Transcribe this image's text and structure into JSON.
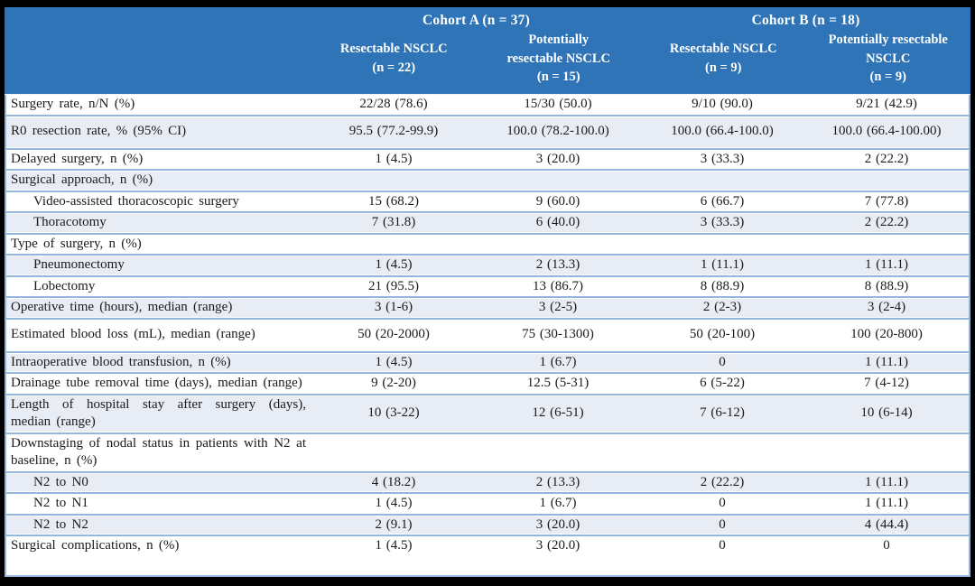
{
  "colors": {
    "header_bg": "#2F74B6",
    "header_text": "#FFFFFF",
    "stripe_row": "#E7ECF5",
    "rule_blue": "#94B6DB",
    "frame_black": "#000000",
    "body_text": "#1B1B1B"
  },
  "table": {
    "groups": [
      {
        "label": "Cohort A (n = 37)"
      },
      {
        "label": "Cohort B (n = 18)"
      }
    ],
    "columns": [
      {
        "label": "Resectable NSCLC\n(n = 22)"
      },
      {
        "label": "Potentially\nresectable NSCLC\n(n = 15)"
      },
      {
        "label": "Resectable NSCLC\n(n = 9)"
      },
      {
        "label": "Potentially resectable\nNSCLC\n(n = 9)"
      }
    ],
    "rows": [
      {
        "label": "Surgery rate, n/N (%)",
        "values": [
          "22/28 (78.6)",
          "15/30 (50.0)",
          "9/10 (90.0)",
          "9/21 (42.9)"
        ]
      },
      {
        "label": "R0 resection rate, % (95% CI)",
        "tall": true,
        "values": [
          "95.5 (77.2-99.9)",
          "100.0 (78.2-100.0)",
          "100.0 (66.4-100.0)",
          "100.0 (66.4-100.00)"
        ]
      },
      {
        "label": "Delayed surgery, n (%)",
        "values": [
          "1 (4.5)",
          "3 (20.0)",
          "3 (33.3)",
          "2 (22.2)"
        ]
      },
      {
        "label": "Surgical approach, n (%)",
        "section": true,
        "values": [
          "",
          "",
          "",
          ""
        ]
      },
      {
        "label": "Video-assisted thoracoscopic surgery",
        "indent": true,
        "values": [
          "15 (68.2)",
          "9 (60.0)",
          "6 (66.7)",
          "7 (77.8)"
        ]
      },
      {
        "label": "Thoracotomy",
        "indent": true,
        "values": [
          "7 (31.8)",
          "6 (40.0)",
          "3 (33.3)",
          "2 (22.2)"
        ]
      },
      {
        "label": "Type of surgery, n (%)",
        "section": true,
        "values": [
          "",
          "",
          "",
          ""
        ]
      },
      {
        "label": "Pneumonectomy",
        "indent": true,
        "values": [
          "1 (4.5)",
          "2 (13.3)",
          "1 (11.1)",
          "1 (11.1)"
        ]
      },
      {
        "label": "Lobectomy",
        "indent": true,
        "values": [
          "21 (95.5)",
          "13 (86.7)",
          "8 (88.9)",
          "8 (88.9)"
        ]
      },
      {
        "label": "Operative time (hours), median (range)",
        "values": [
          "3 (1-6)",
          "3 (2-5)",
          "2 (2-3)",
          "3 (2-4)"
        ]
      },
      {
        "label": "Estimated blood loss (mL), median (range)",
        "tall": true,
        "values": [
          "50 (20-2000)",
          "75 (30-1300)",
          "50 (20-100)",
          "100 (20-800)"
        ]
      },
      {
        "label": "Intraoperative blood transfusion, n (%)",
        "values": [
          "1 (4.5)",
          "1 (6.7)",
          "0",
          "1 (11.1)"
        ]
      },
      {
        "label": "Drainage tube removal time (days), median (range)",
        "values": [
          "9 (2-20)",
          "12.5 (5-31)",
          "6 (5-22)",
          "7 (4-12)"
        ]
      },
      {
        "label": "Length of hospital stay after surgery (days), median (range)",
        "values": [
          "10 (3-22)",
          "12 (6-51)",
          "7 (6-12)",
          "10 (6-14)"
        ]
      },
      {
        "label": "Downstaging of nodal status in patients with N2 at baseline, n (%)",
        "section": true,
        "values": [
          "",
          "",
          "",
          ""
        ]
      },
      {
        "label": "N2 to N0",
        "indent": true,
        "values": [
          "4 (18.2)",
          "2 (13.3)",
          "2 (22.2)",
          "1 (11.1)"
        ]
      },
      {
        "label": "N2 to N1",
        "indent": true,
        "values": [
          "1 (4.5)",
          "1 (6.7)",
          "0",
          "1 (11.1)"
        ]
      },
      {
        "label": "N2 to N2",
        "indent": true,
        "values": [
          "2 (9.1)",
          "3 (20.0)",
          "0",
          "4 (44.4)"
        ]
      },
      {
        "label": "Surgical complications, n (%)",
        "values": [
          "1 (4.5)",
          "3 (20.0)",
          "0",
          "0"
        ]
      }
    ]
  }
}
